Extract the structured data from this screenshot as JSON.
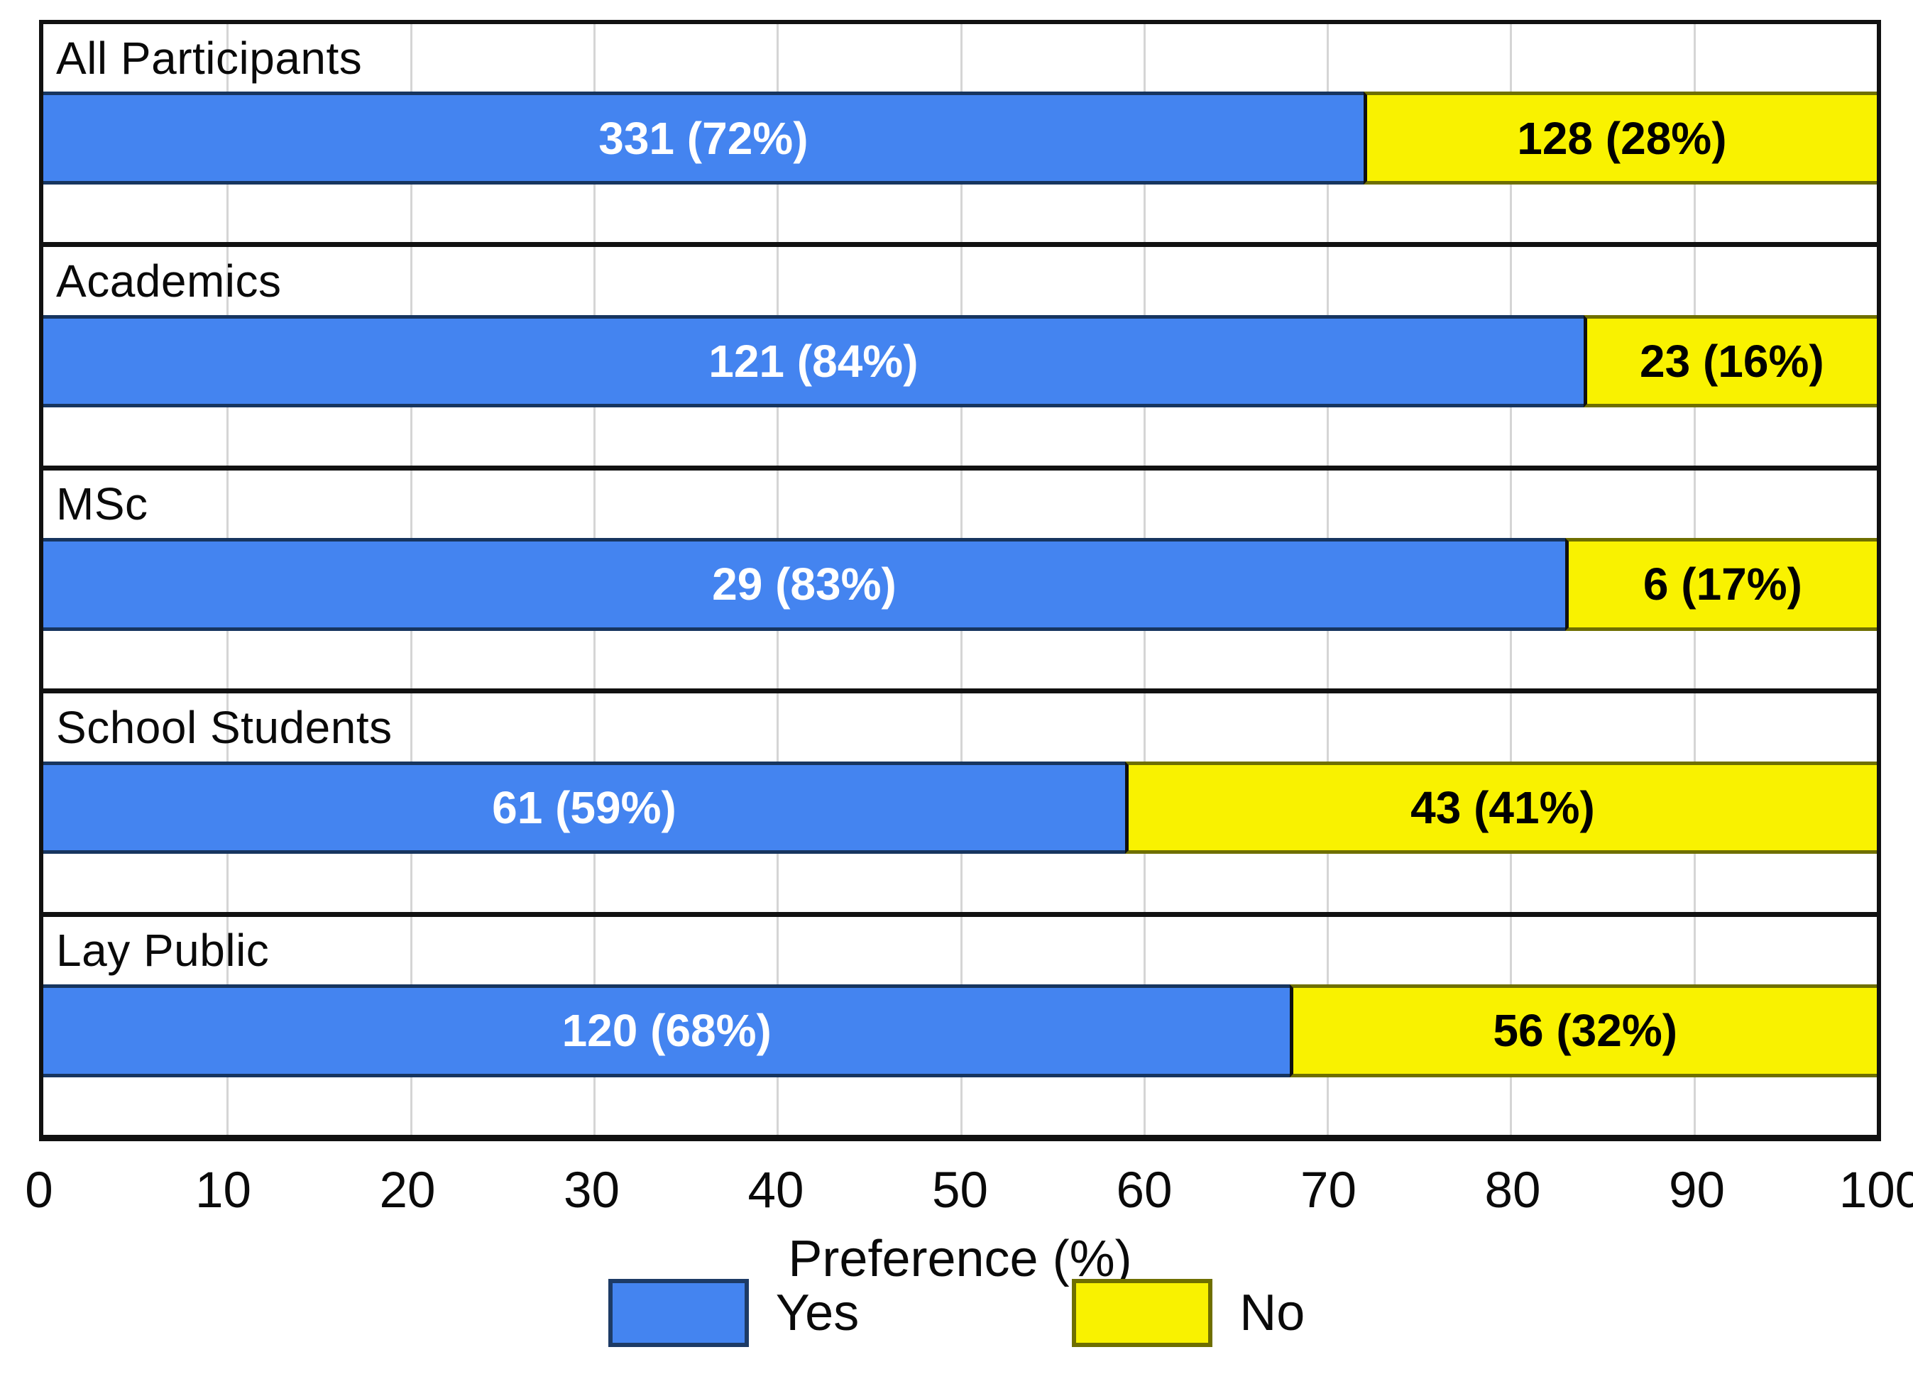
{
  "chart_data": {
    "type": "bar",
    "orientation": "horizontal",
    "stacked": true,
    "title": "",
    "xlabel": "Preference (%)",
    "xlim": [
      0,
      100
    ],
    "x_ticks": [
      0,
      10,
      20,
      30,
      40,
      50,
      60,
      70,
      80,
      90,
      100
    ],
    "grid": "vertical gridlines every 10 percent",
    "legend_position": "bottom",
    "categories": [
      "All Participants",
      "Academics",
      "MSc",
      "School Students",
      "Lay Public"
    ],
    "series": [
      {
        "name": "Yes",
        "color": "#4484f0",
        "border_color": "#17355f",
        "text_color": "#ffffff",
        "counts": [
          331,
          121,
          29,
          61,
          120
        ],
        "percents": [
          72,
          84,
          83,
          59,
          68
        ]
      },
      {
        "name": "No",
        "color": "#f9f200",
        "border_color": "#6f6f00",
        "text_color": "#000000",
        "counts": [
          128,
          23,
          6,
          43,
          56
        ],
        "percents": [
          28,
          16,
          17,
          41,
          32
        ]
      }
    ],
    "groups": [
      {
        "label": "All Participants",
        "yes_pct": 72,
        "yes_text": "331 (72%)",
        "no_pct": 28,
        "no_text": "128 (28%)"
      },
      {
        "label": "Academics",
        "yes_pct": 84,
        "yes_text": "121 (84%)",
        "no_pct": 16,
        "no_text": "23 (16%)"
      },
      {
        "label": "MSc",
        "yes_pct": 83,
        "yes_text": "29 (83%)",
        "no_pct": 17,
        "no_text": "6 (17%)"
      },
      {
        "label": "School Students",
        "yes_pct": 59,
        "yes_text": "61 (59%)",
        "no_pct": 41,
        "no_text": "43 (41%)"
      },
      {
        "label": "Lay Public",
        "yes_pct": 68,
        "yes_text": "120 (68%)",
        "no_pct": 32,
        "no_text": "56 (32%)"
      }
    ],
    "legend": {
      "items": [
        {
          "label": "Yes",
          "color": "#4484f0",
          "border_color": "#1d3b66"
        },
        {
          "label": "No",
          "color": "#f9f200",
          "border_color": "#6f6f00"
        }
      ]
    }
  },
  "style": {
    "background": "#ffffff",
    "frame_color": "#111111",
    "grid_color": "#d5d5d5"
  }
}
